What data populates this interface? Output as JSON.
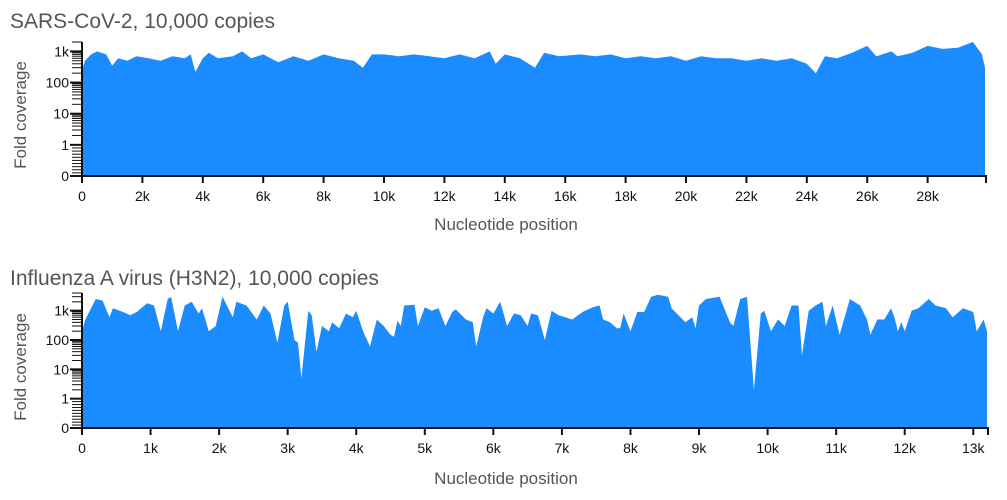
{
  "fill_color": "#1a8cff",
  "chart_data": [
    {
      "type": "area",
      "title": "SARS-CoV-2, 10,000 copies",
      "xlabel": "Nucleotide position",
      "ylabel": "Fold coverage",
      "y_scale": "log (linear below 1)",
      "xlim": [
        0,
        29900
      ],
      "ylim": [
        0,
        2000
      ],
      "xticks": [
        "0",
        "2k",
        "4k",
        "6k",
        "8k",
        "10k",
        "12k",
        "14k",
        "16k",
        "18k",
        "20k",
        "22k",
        "24k",
        "26k",
        "28k"
      ],
      "xtick_values": [
        0,
        2000,
        4000,
        6000,
        8000,
        10000,
        12000,
        14000,
        16000,
        18000,
        20000,
        22000,
        24000,
        26000,
        28000
      ],
      "yticks": [
        "0",
        "1",
        "10",
        "100",
        "1k"
      ],
      "ytick_values": [
        0,
        1,
        10,
        100,
        1000
      ],
      "grid": false,
      "x": [
        0,
        100,
        300,
        500,
        800,
        1000,
        1200,
        1500,
        1800,
        2200,
        2600,
        3000,
        3400,
        3600,
        3750,
        4000,
        4200,
        4500,
        5000,
        5300,
        5600,
        6000,
        6500,
        7000,
        7500,
        8000,
        8500,
        9000,
        9300,
        9600,
        10000,
        10500,
        11000,
        11500,
        12000,
        12500,
        13000,
        13500,
        13700,
        14000,
        14500,
        15000,
        15300,
        15800,
        16500,
        17000,
        17500,
        18000,
        18500,
        19000,
        19500,
        20000,
        20500,
        21000,
        21500,
        22000,
        22500,
        23000,
        23500,
        24000,
        24300,
        24600,
        25000,
        25500,
        26000,
        26300,
        26800,
        27000,
        27500,
        28000,
        28500,
        29000,
        29500,
        29800,
        29900
      ],
      "y": [
        250,
        500,
        800,
        1000,
        800,
        350,
        600,
        500,
        700,
        600,
        500,
        700,
        600,
        800,
        220,
        600,
        900,
        600,
        700,
        1000,
        600,
        800,
        450,
        700,
        500,
        800,
        600,
        500,
        300,
        800,
        800,
        700,
        800,
        700,
        600,
        800,
        600,
        1000,
        400,
        800,
        600,
        300,
        900,
        700,
        800,
        700,
        800,
        600,
        700,
        600,
        700,
        500,
        700,
        600,
        600,
        500,
        600,
        500,
        600,
        400,
        200,
        700,
        600,
        900,
        1500,
        700,
        1000,
        700,
        900,
        1500,
        1200,
        1300,
        2000,
        800,
        300
      ]
    },
    {
      "type": "area",
      "title": "Influenza A virus (H3N2), 10,000 copies",
      "xlabel": "Nucleotide position",
      "ylabel": "Fold coverage",
      "y_scale": "log (linear below 1)",
      "xlim": [
        0,
        13200
      ],
      "ylim": [
        0,
        4000
      ],
      "xticks": [
        "0",
        "1k",
        "2k",
        "3k",
        "4k",
        "5k",
        "6k",
        "7k",
        "8k",
        "9k",
        "10k",
        "11k",
        "12k",
        "13k"
      ],
      "xtick_values": [
        0,
        1000,
        2000,
        3000,
        4000,
        5000,
        6000,
        7000,
        8000,
        9000,
        10000,
        11000,
        12000,
        13000
      ],
      "yticks": [
        "0",
        "1",
        "10",
        "100",
        "1k"
      ],
      "ytick_values": [
        0,
        1,
        10,
        100,
        1000
      ],
      "grid": false,
      "x": [
        0,
        50,
        200,
        300,
        400,
        450,
        600,
        700,
        800,
        950,
        1050,
        1150,
        1250,
        1300,
        1400,
        1500,
        1600,
        1700,
        1750,
        1850,
        1950,
        2050,
        2200,
        2250,
        2400,
        2550,
        2650,
        2750,
        2850,
        2950,
        3000,
        3100,
        3150,
        3200,
        3300,
        3350,
        3420,
        3500,
        3600,
        3650,
        3750,
        3850,
        3950,
        4000,
        4100,
        4200,
        4300,
        4400,
        4500,
        4550,
        4600,
        4650,
        4700,
        4850,
        4900,
        5000,
        5100,
        5200,
        5300,
        5400,
        5450,
        5600,
        5700,
        5750,
        5850,
        5900,
        6000,
        6100,
        6200,
        6300,
        6400,
        6500,
        6550,
        6650,
        6750,
        6850,
        6950,
        7050,
        7150,
        7300,
        7450,
        7550,
        7600,
        7700,
        7800,
        7850,
        7900,
        8000,
        8100,
        8200,
        8300,
        8400,
        8550,
        8600,
        8700,
        8800,
        8900,
        8950,
        9000,
        9100,
        9300,
        9450,
        9500,
        9600,
        9700,
        9800,
        9900,
        9950,
        10050,
        10150,
        10250,
        10350,
        10450,
        10500,
        10600,
        10700,
        10800,
        10850,
        10950,
        11050,
        11200,
        11350,
        11450,
        11500,
        11600,
        11700,
        11800,
        11850,
        11900,
        11950,
        12000,
        12100,
        12200,
        12350,
        12450,
        12600,
        12700,
        12850,
        13000,
        13050,
        13150,
        13200
      ],
      "y": [
        200,
        500,
        2500,
        2200,
        600,
        1200,
        900,
        700,
        900,
        1800,
        1500,
        200,
        2500,
        3000,
        200,
        1500,
        2000,
        800,
        1200,
        200,
        300,
        3000,
        600,
        2000,
        1500,
        500,
        1500,
        800,
        80,
        1500,
        2000,
        100,
        80,
        5,
        1000,
        700,
        40,
        300,
        200,
        400,
        250,
        800,
        600,
        1000,
        200,
        60,
        500,
        300,
        150,
        130,
        450,
        300,
        1500,
        1600,
        300,
        1300,
        1000,
        1200,
        300,
        900,
        1100,
        500,
        400,
        60,
        600,
        1200,
        800,
        2000,
        300,
        800,
        700,
        300,
        800,
        700,
        100,
        1000,
        700,
        600,
        500,
        900,
        1300,
        1500,
        500,
        400,
        250,
        250,
        800,
        200,
        900,
        900,
        3000,
        3500,
        3000,
        1200,
        700,
        400,
        600,
        250,
        1500,
        2500,
        3000,
        400,
        300,
        2500,
        3000,
        2,
        800,
        1000,
        200,
        500,
        300,
        1500,
        1500,
        30,
        1000,
        1500,
        2000,
        300,
        1500,
        150,
        2500,
        1500,
        500,
        150,
        500,
        500,
        1200,
        600,
        200,
        400,
        200,
        1000,
        1200,
        2500,
        1500,
        1200,
        600,
        1200,
        900,
        200,
        500,
        200
      ]
    }
  ]
}
